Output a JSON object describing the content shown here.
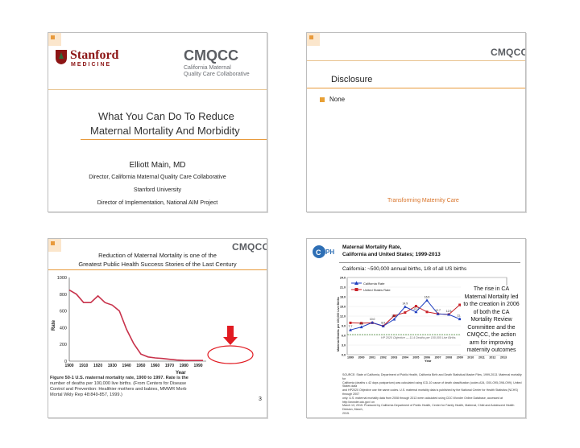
{
  "slide1": {
    "stanford_line1": "Stanford",
    "stanford_line2": "MEDICINE",
    "cmqcc_logo": "CMQCC",
    "cmqcc_sub1": "California Maternal",
    "cmqcc_sub2": "Quality Care Collaborative",
    "title_line1": "What You Can Do To Reduce",
    "title_line2": "Maternal Mortality And Morbidity",
    "presenter": "Elliott Main, MD",
    "role1": "Director, California Maternal Quality Care Collaborative",
    "role2": "Stanford University",
    "role3": "Director of Implementation, National AIM Project"
  },
  "slide2": {
    "logo": "CMQCC",
    "title": "Disclosure",
    "bullet": "None",
    "footer": "Transforming Maternity Care"
  },
  "slide3": {
    "logo": "CMQCC",
    "title_line1": "Reduction of Maternal Mortality is one of the",
    "title_line2": "Greatest Public Health Success Stories of the Last Century",
    "caption_line1": "Figure 50-1  U.S. maternal mortality rate, 1900 to 1997. Rate is the",
    "caption_line2": "number of deaths per 100,000 live births. (From Centers for Disease",
    "caption_line3": "Control and Prevention: Healthier mothers and babies, MMWR Morb",
    "caption_line4": "Mortal Wkly Rep 48:849-857, 1999.)",
    "page_number": "3"
  },
  "slide4": {
    "title_line1": "Maternal Mortality Rate,",
    "title_line2": "California and United States; 1999-2013",
    "subtitle": "California: ~500,000 annual births, 1/8 of all US births",
    "note_line1": "The rise in CA",
    "note_line2": "Maternal Mortality led",
    "note_line3": "to the creation in 2006",
    "note_line4": "of both the CA",
    "note_line5": "Mortality Review",
    "note_line6": "Committee and the",
    "note_line7": "CMQCC, the action",
    "note_line8": "arm for improving",
    "note_line9": "maternity outcomes",
    "source_line1": "SOURCE: State of California, Department of Public Health, California Birth and Death Statistical Master Files, 1999-2013. Maternal mortality for",
    "source_line2": "California (deaths ≤ 42 days postpartum) was calculated using ICD-10 cause of death classification (codes A34, O00-O95,O98-O99). United States data",
    "source_line3": "and HP2020 Objective use the same codes. U.S. maternal mortality data is published by the National Center for Health Statistics (NCHS) through 2007",
    "source_line4": "only. U.S. maternal mortality data from 2008 through 2013 were calculated using CDC Wonder Online Database, accessed at http://wonder.cdc.gov/ on",
    "source_line5": "March 13, 2015. Produced by California Department of Public Health, Center for Family Health, Maternal, Child and Adolescent Health Division, March,",
    "source_line6": "2015."
  },
  "chart_data": [
    {
      "type": "line",
      "title": "",
      "xlabel": "Year",
      "ylabel": "Rate",
      "x": [
        1900,
        1905,
        1910,
        1915,
        1920,
        1925,
        1930,
        1935,
        1940,
        1945,
        1950,
        1955,
        1960,
        1965,
        1970,
        1975,
        1980,
        1985,
        1990,
        1997
      ],
      "values": [
        850,
        800,
        700,
        700,
        780,
        700,
        670,
        600,
        380,
        210,
        85,
        50,
        38,
        32,
        22,
        13,
        9,
        8,
        8,
        8
      ],
      "xlim": [
        1900,
        1990
      ],
      "ylim": [
        0,
        1000
      ],
      "yticks": [
        0,
        200,
        400,
        600,
        800,
        1000
      ],
      "xticks": [
        1900,
        1910,
        1920,
        1930,
        1940,
        1950,
        1960,
        1970,
        1980,
        1990
      ],
      "color": "#c8324b"
    },
    {
      "type": "line",
      "title": "",
      "xlabel": "Year",
      "ylabel": "Maternal Deaths per 100,000 Live Births",
      "categories": [
        "1999",
        "2000",
        "2001",
        "2002",
        "2003",
        "2004",
        "2005",
        "2006",
        "2007",
        "2008",
        "2009",
        "2010",
        "2011",
        "2012",
        "2013"
      ],
      "series": [
        {
          "name": "California Rate",
          "color": "#1f3fbf",
          "values": [
            7.7,
            8.6,
            10.0,
            8.9,
            11.0,
            14.9,
            13.3,
            16.9,
            12.7,
            12.5,
            11.1,
            13.1,
            18.1,
            11.1,
            12.9
          ],
          "labels": [
            "7.7",
            "8.6",
            "10.0",
            "8.9",
            "11.0",
            "14.9",
            "13.3",
            "16.9",
            "12.7",
            "12.5",
            "11.1",
            "13.1",
            "18.1",
            "11.1",
            "12.9"
          ]
        },
        {
          "name": "United States Rate",
          "color": "#c81f26",
          "values": [
            9.9,
            9.8,
            9.9,
            8.9,
            12.1,
            13.1,
            15.1,
            13.3,
            12.7,
            12.5,
            15.5,
            11.8,
            12.7,
            12.5,
            11.1
          ],
          "labels": []
        }
      ],
      "hp2020_label": "HP 2020 Objective — 11.4 Deaths per 100,000 Live Births",
      "ylim": [
        0,
        24
      ],
      "yticks": [
        "0.0",
        "3.0",
        "6.0",
        "9.0",
        "12.0",
        "15.0",
        "18.0",
        "21.0",
        "24.0"
      ],
      "legend_position": "top-left"
    }
  ]
}
